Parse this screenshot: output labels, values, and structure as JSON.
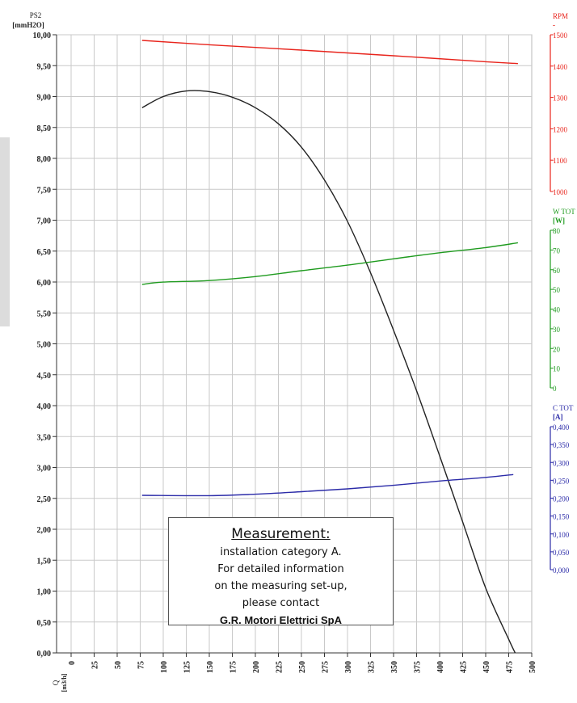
{
  "chart_data": {
    "type": "line",
    "x_axis": {
      "label_symbol": "Q",
      "label_unit": "[m3/h]",
      "range": [
        0,
        500
      ],
      "ticks": [
        0,
        25,
        50,
        75,
        100,
        125,
        150,
        175,
        200,
        225,
        250,
        275,
        300,
        325,
        350,
        375,
        400,
        425,
        450,
        475,
        500
      ],
      "tick_labels": [
        "0",
        "25",
        "50",
        "75",
        "100",
        "125",
        "150",
        "175",
        "200",
        "225",
        "250",
        "275",
        "300",
        "325",
        "350",
        "375",
        "400",
        "425",
        "450",
        "475",
        "500"
      ]
    },
    "left_axis": {
      "label_symbol": "PS2",
      "label_unit": "[mmH2O]",
      "range": [
        0,
        10
      ],
      "tick_labels": [
        "0,00",
        "0,50",
        "1,00",
        "1,50",
        "2,00",
        "2,50",
        "3,00",
        "3,50",
        "4,00",
        "4,50",
        "5,00",
        "5,50",
        "6,00",
        "6,50",
        "7,00",
        "7,50",
        "8,00",
        "8,50",
        "9,00",
        "9,50",
        "10,00"
      ]
    },
    "right_axes": [
      {
        "id": "rpm",
        "label": "RPM",
        "unit": "-",
        "color": "#e8241c",
        "range": [
          1000,
          1500
        ],
        "tick_labels": [
          "1000",
          "1100",
          "1200",
          "1300",
          "1400",
          "1500"
        ]
      },
      {
        "id": "w",
        "label": "W TOT",
        "unit": "[W]",
        "color": "#1f9b1f",
        "range": [
          0,
          80
        ],
        "tick_labels": [
          "0",
          "10",
          "20",
          "30",
          "40",
          "50",
          "60",
          "70",
          "80"
        ]
      },
      {
        "id": "c",
        "label": "C TOT",
        "unit": "[A]",
        "color": "#2b2ba8",
        "range": [
          0,
          0.4
        ],
        "tick_labels": [
          "0,000",
          "0,050",
          "0,100",
          "0,150",
          "0,200",
          "0,250",
          "0,300",
          "0,350",
          "0,400"
        ]
      }
    ],
    "series": [
      {
        "axis": "left",
        "color": "#222222",
        "x": [
          77,
          100,
          125,
          150,
          175,
          200,
          225,
          250,
          275,
          300,
          325,
          350,
          375,
          400,
          425,
          450,
          475,
          482
        ],
        "y": [
          8.82,
          9.0,
          9.09,
          9.08,
          8.99,
          8.82,
          8.56,
          8.18,
          7.65,
          6.98,
          6.15,
          5.22,
          4.24,
          3.19,
          2.12,
          1.05,
          0.22,
          0.0
        ]
      },
      {
        "axis": "rpm",
        "color": "#e8241c",
        "x": [
          77,
          150,
          250,
          350,
          450,
          485
        ],
        "y": [
          1482,
          1468,
          1451,
          1433,
          1414,
          1408
        ]
      },
      {
        "axis": "w",
        "color": "#1f9b1f",
        "x": [
          77,
          100,
          150,
          200,
          250,
          300,
          350,
          400,
          450,
          485
        ],
        "y": [
          52.5,
          53.7,
          54.5,
          56.5,
          59.5,
          62.3,
          65.5,
          68.6,
          71.2,
          73.7
        ]
      },
      {
        "axis": "c",
        "color": "#2b2ba8",
        "x": [
          77,
          150,
          200,
          250,
          300,
          350,
          400,
          450,
          480
        ],
        "y": [
          0.208,
          0.207,
          0.211,
          0.218,
          0.226,
          0.236,
          0.248,
          0.258,
          0.266
        ]
      }
    ],
    "grid": true
  },
  "note": {
    "title": "Measurement:",
    "lines": [
      "installation category A.",
      "For detailed information",
      "on the measuring set-up,",
      "please contact"
    ],
    "company": "G.R. Motori Elettrici SpA"
  }
}
